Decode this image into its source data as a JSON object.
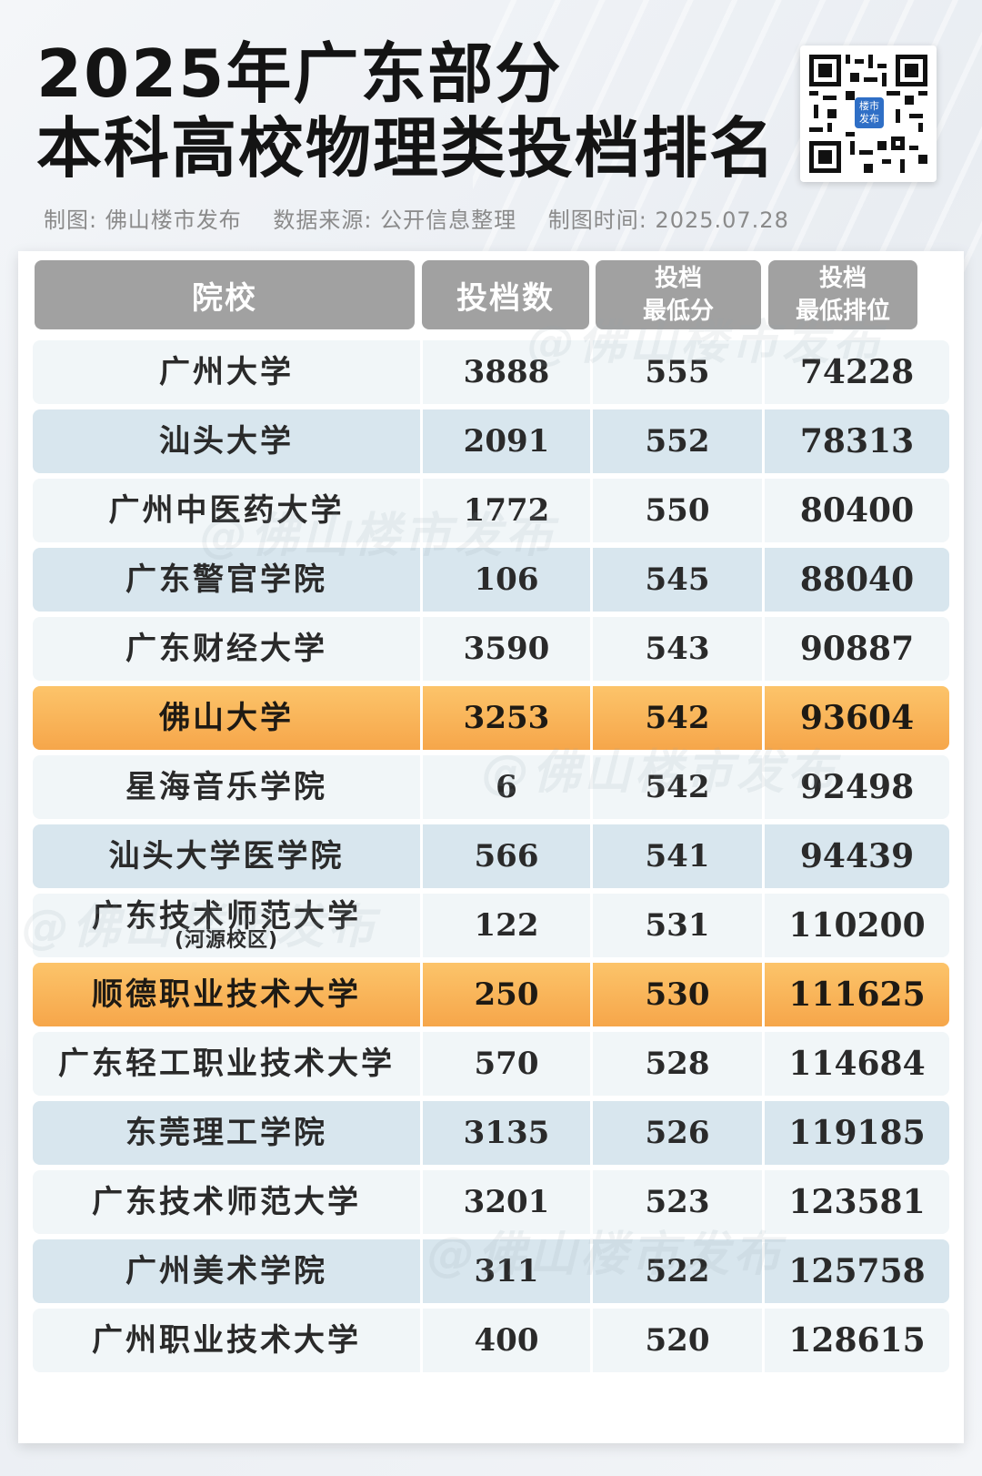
{
  "title": {
    "line1": "2025年广东部分",
    "line2": "本科高校物理类投档排名"
  },
  "qr": {
    "badge": "楼市\n发布"
  },
  "meta": {
    "maker": "制图: 佛山楼市发布",
    "source": "数据来源: 公开信息整理",
    "time": "制图时间: 2025.07.28"
  },
  "watermark": "@佛山楼市发布",
  "table": {
    "headers": {
      "school": "院校",
      "count": "投档数",
      "min_score_1": "投档",
      "min_score_2": "最低分",
      "min_rank_1": "投档",
      "min_rank_2": "最低排位"
    },
    "rows": [
      {
        "school": "广州大学",
        "sub": "",
        "count": "3888",
        "score": "555",
        "rank": "74228",
        "highlight": false
      },
      {
        "school": "汕头大学",
        "sub": "",
        "count": "2091",
        "score": "552",
        "rank": "78313",
        "highlight": false
      },
      {
        "school": "广州中医药大学",
        "sub": "",
        "count": "1772",
        "score": "550",
        "rank": "80400",
        "highlight": false
      },
      {
        "school": "广东警官学院",
        "sub": "",
        "count": "106",
        "score": "545",
        "rank": "88040",
        "highlight": false
      },
      {
        "school": "广东财经大学",
        "sub": "",
        "count": "3590",
        "score": "543",
        "rank": "90887",
        "highlight": false
      },
      {
        "school": "佛山大学",
        "sub": "",
        "count": "3253",
        "score": "542",
        "rank": "93604",
        "highlight": true
      },
      {
        "school": "星海音乐学院",
        "sub": "",
        "count": "6",
        "score": "542",
        "rank": "92498",
        "highlight": false
      },
      {
        "school": "汕头大学医学院",
        "sub": "",
        "count": "566",
        "score": "541",
        "rank": "94439",
        "highlight": false
      },
      {
        "school": "广东技术师范大学",
        "sub": "(河源校区)",
        "count": "122",
        "score": "531",
        "rank": "110200",
        "highlight": false
      },
      {
        "school": "顺德职业技术大学",
        "sub": "",
        "count": "250",
        "score": "530",
        "rank": "111625",
        "highlight": true
      },
      {
        "school": "广东轻工职业技术大学",
        "sub": "",
        "count": "570",
        "score": "528",
        "rank": "114684",
        "highlight": false
      },
      {
        "school": "东莞理工学院",
        "sub": "",
        "count": "3135",
        "score": "526",
        "rank": "119185",
        "highlight": false
      },
      {
        "school": "广东技术师范大学",
        "sub": "",
        "count": "3201",
        "score": "523",
        "rank": "123581",
        "highlight": false
      },
      {
        "school": "广州美术学院",
        "sub": "",
        "count": "311",
        "score": "522",
        "rank": "125758",
        "highlight": false
      },
      {
        "school": "广州职业技术大学",
        "sub": "",
        "count": "400",
        "score": "520",
        "rank": "128615",
        "highlight": false
      }
    ]
  },
  "colors": {
    "highlight": "#f6a64a",
    "row_light": "#f1f6f8",
    "row_dark": "#d8e6ee",
    "header": "#a1a1a1"
  }
}
